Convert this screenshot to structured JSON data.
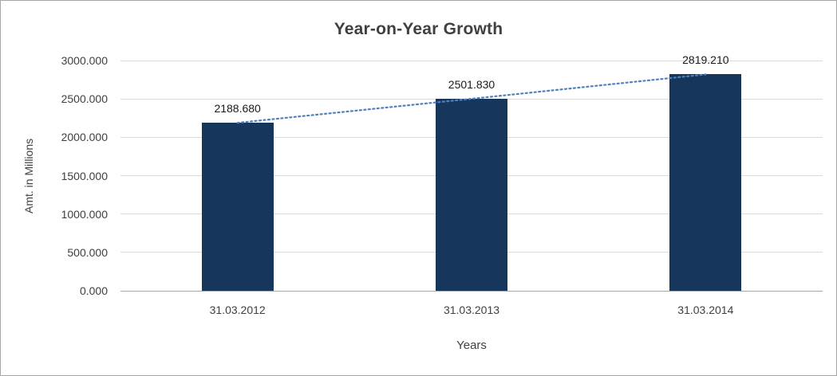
{
  "chart_data": {
    "type": "bar",
    "title": "Year-on-Year Growth",
    "xlabel": "Years",
    "ylabel": "Amt. in Millions",
    "categories": [
      "31.03.2012",
      "31.03.2013",
      "31.03.2014"
    ],
    "values": [
      2188.68,
      2501.83,
      2819.21
    ],
    "value_labels": [
      "2188.680",
      "2501.830",
      "2819.210"
    ],
    "ylim": [
      0,
      3000
    ],
    "yticks": [
      0,
      500,
      1000,
      1500,
      2000,
      2500,
      3000
    ],
    "ytick_labels": [
      "0.000",
      "500.000",
      "1000.000",
      "1500.000",
      "2000.000",
      "2500.000",
      "3000.000"
    ],
    "grid": true,
    "legend": "none",
    "has_trendline": true,
    "colors": {
      "bar": "#16365C",
      "trendline": "#4F81BD",
      "gridline": "#D9D9D9",
      "axis": "#A6A6A6",
      "text": "#404040",
      "data_label": "#1A1A1A"
    }
  }
}
